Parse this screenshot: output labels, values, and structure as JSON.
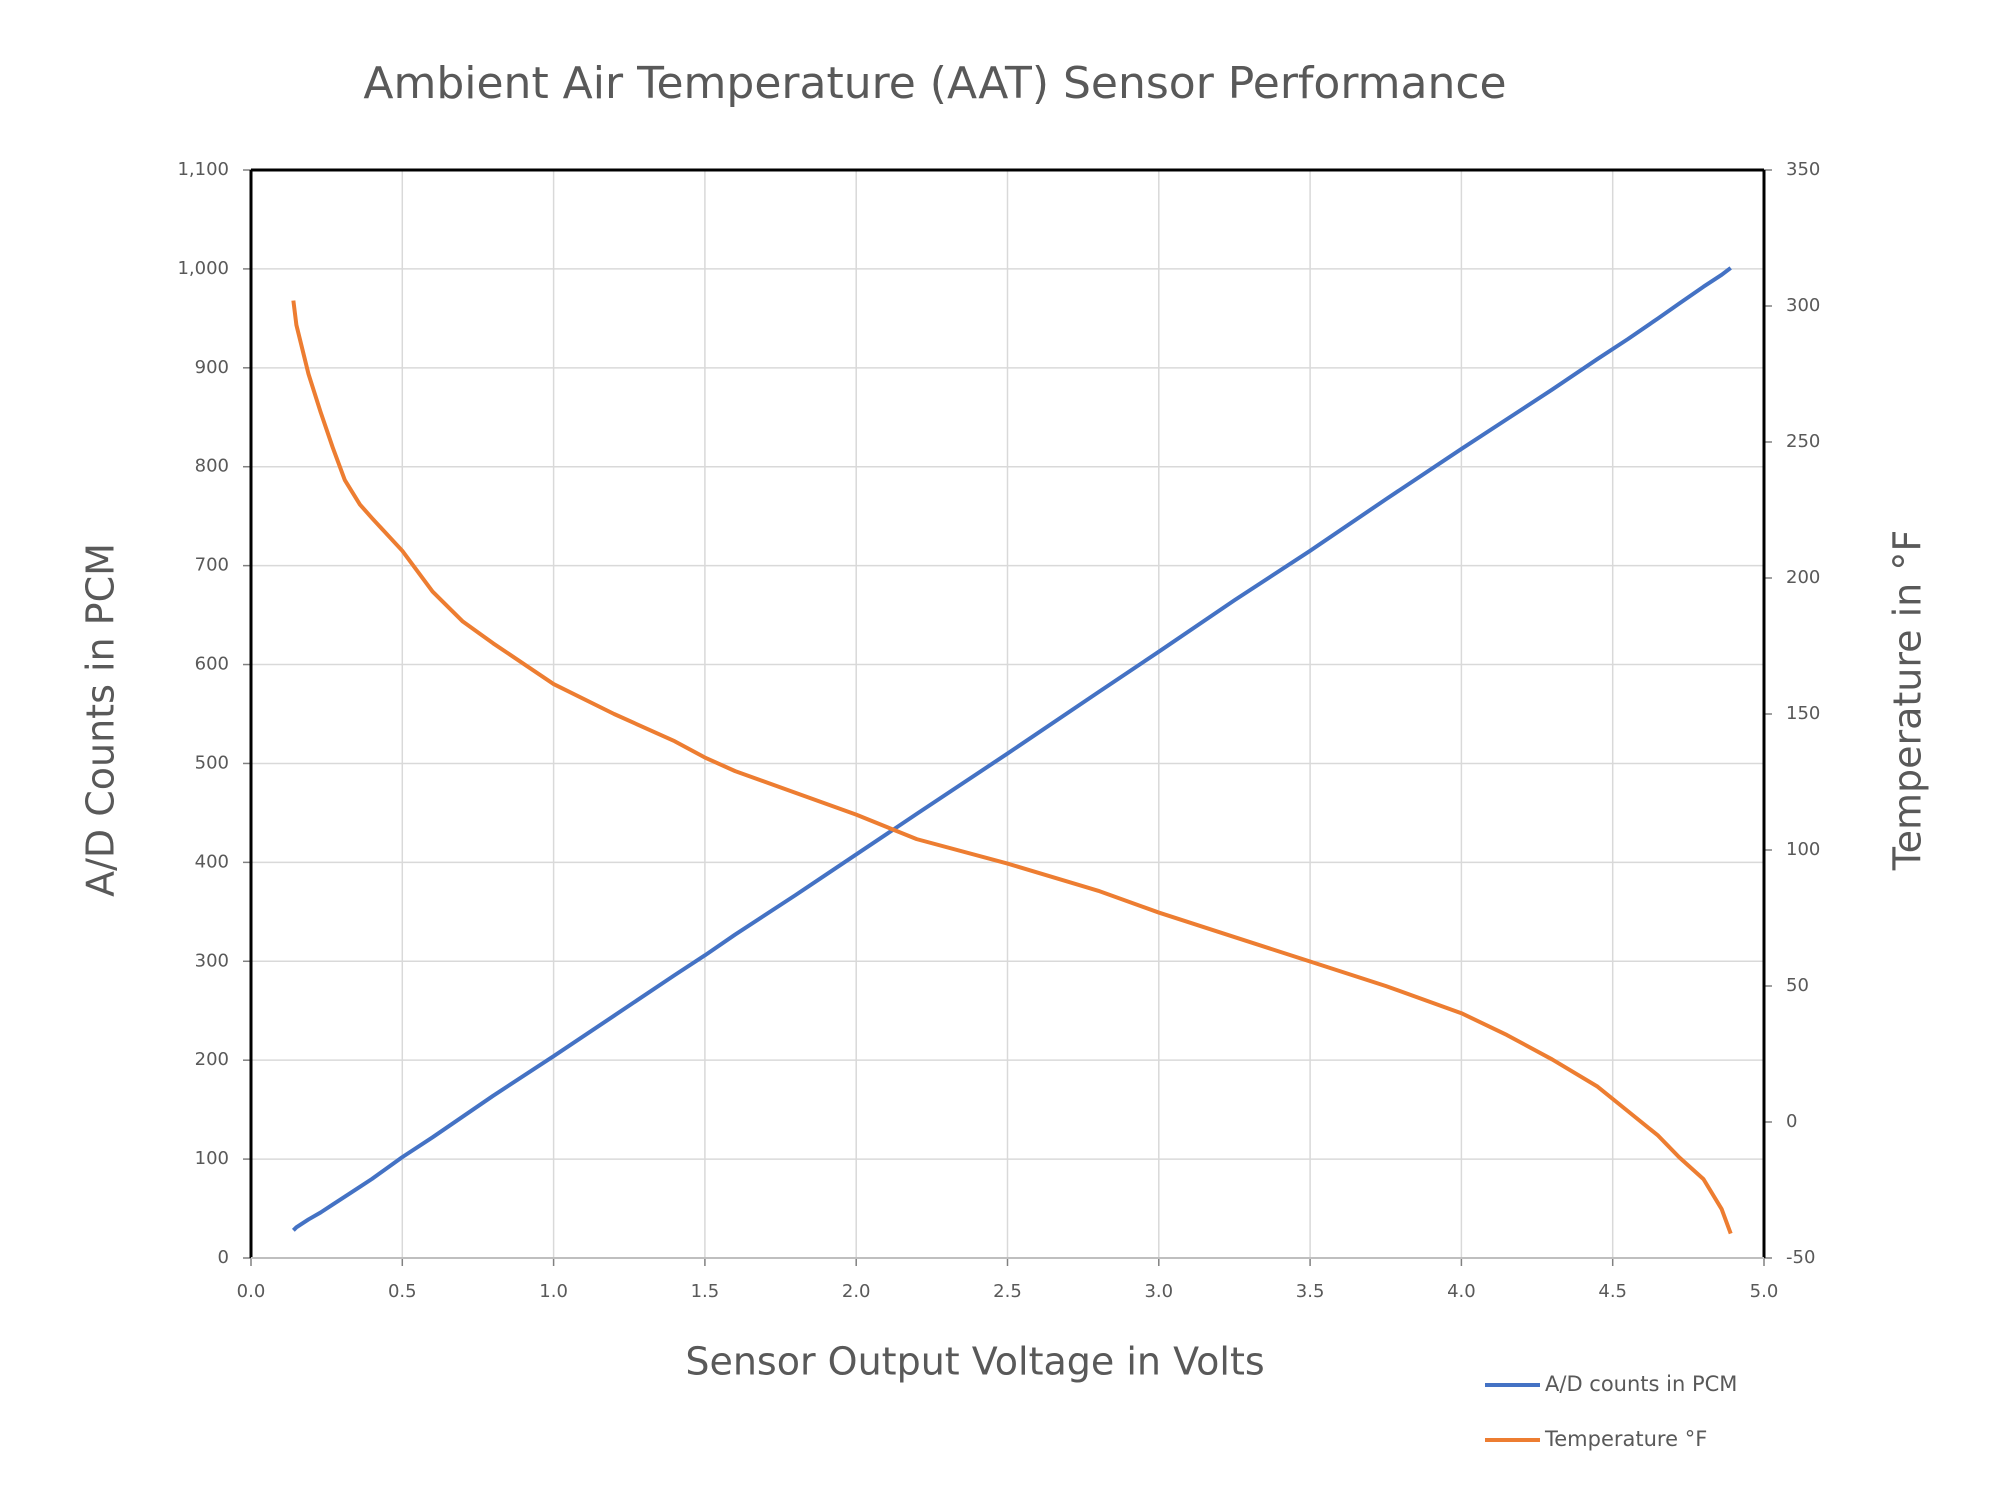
{
  "chart_data": {
    "type": "line",
    "title": "Ambient Air Temperature (AAT) Sensor Performance",
    "x_label": "Sensor Output Voltage in Volts",
    "y_label": "A/D Counts in PCM",
    "y2_label": "Temperature in °F",
    "x": [
      0.14,
      0.15,
      0.19,
      0.23,
      0.27,
      0.31,
      0.36,
      0.4,
      0.5,
      0.6,
      0.7,
      0.8,
      1.0,
      1.2,
      1.4,
      1.5,
      1.6,
      1.8,
      2.0,
      2.2,
      2.5,
      2.8,
      3.0,
      3.25,
      3.5,
      3.75,
      4.0,
      4.15,
      4.3,
      4.45,
      4.55,
      4.65,
      4.72,
      4.8,
      4.86,
      4.89
    ],
    "series": [
      {
        "name": "A/D counts in PCM",
        "color": "#4472c4",
        "values": [
          28,
          31,
          39,
          46,
          54,
          62,
          72,
          80,
          102,
          122,
          143,
          164,
          204,
          245,
          286,
          306,
          327,
          367,
          408,
          449,
          510,
          572,
          613,
          665,
          715,
          767,
          818,
          848,
          878,
          909,
          929,
          950,
          965,
          982,
          994,
          1001
        ]
      },
      {
        "name": "Temperature °F",
        "color": "#ed7d31",
        "axis": "y2",
        "values": [
          302,
          293,
          275,
          261,
          248,
          236,
          227,
          222,
          210,
          195,
          184,
          176,
          161,
          150,
          140,
          134,
          129,
          121,
          113,
          104,
          95,
          85,
          77,
          68,
          59,
          50,
          40,
          32,
          23,
          13,
          4,
          -5,
          -13,
          -21,
          -32,
          -41
        ]
      }
    ],
    "xlim": [
      0,
      5
    ],
    "xticks": [
      {
        "value": 0,
        "label": "0.0"
      },
      0.5,
      {
        "value": 1,
        "label": "1.0"
      },
      1.5,
      {
        "value": 2,
        "label": "2.0"
      },
      2.5,
      {
        "value": 3,
        "label": "3.0"
      },
      3.5,
      {
        "value": 4,
        "label": "4.0"
      },
      4.5,
      {
        "value": 5,
        "label": "5.0"
      }
    ],
    "ylim": [
      0,
      1100
    ],
    "yticks": [
      0,
      100,
      200,
      300,
      400,
      500,
      600,
      700,
      800,
      900,
      {
        "value": 1000,
        "label": "1,000"
      },
      {
        "value": 1100,
        "label": "1,100"
      }
    ],
    "y2lim": [
      -50,
      350
    ],
    "y2ticks": [
      -50,
      0,
      50,
      100,
      150,
      200,
      250,
      300,
      350
    ],
    "grid": true,
    "legend": "bottom-right"
  }
}
